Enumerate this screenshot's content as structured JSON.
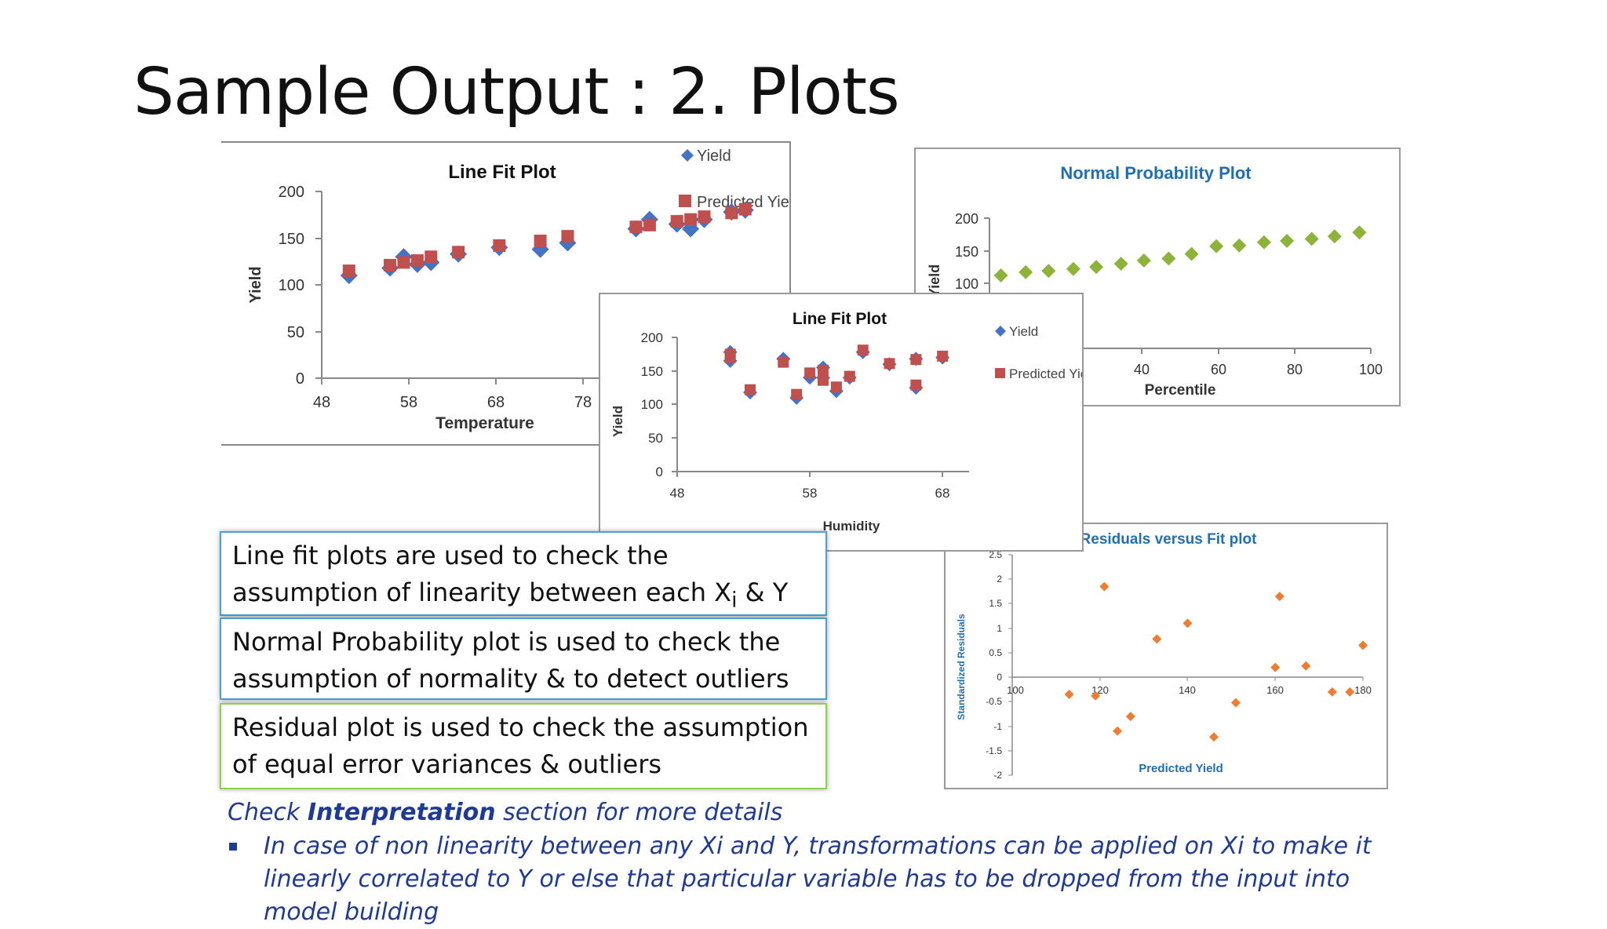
{
  "slide": {
    "title": "Sample Output : 2. Plots",
    "notes": {
      "line_fit": {
        "before_sub": "Line fit plots are used to check the assumption of linearity between each X",
        "sub": "i",
        "after_sub": " & Y"
      },
      "normal": "Normal Probability plot is used to check the assumption of normality & to detect outliers",
      "residual": "Residual plot is used to check the assumption of equal error variances & outliers"
    },
    "footer": {
      "prefix": "Check ",
      "bold": "Interpretation",
      "suffix": " section for more details"
    },
    "bullet": "In case of non linearity between any Xi and Y, transformations can be applied on Xi to make it linearly correlated  to Y or else that particular variable has to be dropped from the input into model building",
    "colors": {
      "yield": "#4472c4",
      "predicted": "#c0504d",
      "normal_points": "#8cb33a",
      "residual_points": "#ed7d31",
      "title_blue": "#1f6fb2"
    }
  },
  "chart_data": [
    {
      "id": "linefit-temp",
      "type": "scatter",
      "title": "Line Fit  Plot",
      "xlabel": "Temperature",
      "ylabel": "Yield",
      "xlim": [
        48,
        82
      ],
      "xticks": [
        48,
        58,
        68,
        78
      ],
      "ylim": [
        0,
        200
      ],
      "yticks": [
        0,
        50,
        100,
        150,
        200
      ],
      "legend": "top-right",
      "series": [
        {
          "name": "Yield",
          "marker": "diamond",
          "color": "#4472c4",
          "x": [
            50,
            53,
            54,
            55,
            56,
            58,
            61,
            64,
            66,
            71,
            72,
            74,
            75,
            76,
            78,
            79
          ],
          "y": [
            110,
            118,
            130,
            122,
            124,
            133,
            140,
            138,
            145,
            160,
            170,
            165,
            160,
            170,
            178,
            180
          ]
        },
        {
          "name": "Predicted Yield",
          "marker": "square",
          "color": "#c0504d",
          "x": [
            50,
            53,
            54,
            55,
            56,
            58,
            61,
            64,
            66,
            71,
            72,
            74,
            75,
            76,
            78,
            79
          ],
          "y": [
            115,
            121,
            124,
            126,
            130,
            135,
            142,
            147,
            152,
            162,
            164,
            168,
            170,
            173,
            177,
            181
          ]
        }
      ]
    },
    {
      "id": "normal",
      "type": "scatter",
      "title": "Normal Probability Plot",
      "xlabel": "Percentile",
      "ylabel": "Yield",
      "xlim": [
        0,
        100
      ],
      "xticks": [
        40,
        60,
        80,
        100
      ],
      "ylim": [
        0,
        200
      ],
      "yticks": [
        100,
        150,
        200
      ],
      "series": [
        {
          "name": "Yield",
          "marker": "diamond",
          "color": "#8cb33a",
          "x": [
            3,
            9.5,
            15.5,
            22,
            28,
            34.5,
            40.5,
            47,
            53,
            59.5,
            65.5,
            72,
            78,
            84.5,
            90.5,
            97
          ],
          "y": [
            112,
            117,
            119,
            122,
            125,
            130,
            135,
            138,
            145,
            157,
            158,
            163,
            165,
            168,
            172,
            178
          ]
        }
      ]
    },
    {
      "id": "residuals",
      "type": "scatter",
      "title": "Residuals versus Fit plot",
      "xlabel": "Predicted Yield",
      "ylabel": "Standardized Residuals",
      "xlim": [
        100,
        180
      ],
      "xticks": [
        100,
        120,
        140,
        160,
        180
      ],
      "ylim": [
        -2,
        2.5
      ],
      "yticks": [
        -2,
        -1.5,
        -1,
        -0.5,
        0,
        0.5,
        1,
        1.5,
        2,
        2.5
      ],
      "series": [
        {
          "name": "Residuals",
          "marker": "diamond",
          "color": "#ed7d31",
          "x": [
            113,
            119,
            121,
            124,
            127,
            133,
            140,
            146,
            151,
            160,
            161,
            167,
            173,
            177,
            180
          ],
          "y": [
            -0.35,
            -0.38,
            1.85,
            -1.1,
            -0.8,
            0.78,
            1.1,
            -1.22,
            -0.52,
            0.2,
            1.65,
            0.23,
            -0.3,
            -0.3,
            0.65
          ]
        }
      ]
    },
    {
      "id": "linefit-hum",
      "type": "scatter",
      "title": "Line Fit  Plot",
      "xlabel": "Humidity",
      "ylabel": "Yield",
      "xlim": [
        48,
        70
      ],
      "xticks": [
        48,
        58,
        68
      ],
      "ylim": [
        0,
        200
      ],
      "yticks": [
        0,
        50,
        100,
        150,
        200
      ],
      "legend": "top-right",
      "series": [
        {
          "name": "Yield",
          "marker": "diamond",
          "color": "#4472c4",
          "x": [
            52,
            52,
            53.5,
            56,
            57,
            58,
            59,
            59,
            60,
            61,
            62,
            64,
            66,
            66,
            68
          ],
          "y": [
            165,
            178,
            118,
            168,
            110,
            140,
            155,
            140,
            120,
            140,
            178,
            160,
            168,
            125,
            170
          ]
        },
        {
          "name": "Predicted Yield",
          "marker": "square",
          "color": "#c0504d",
          "x": [
            52,
            52,
            53.5,
            56,
            57,
            58,
            59,
            59,
            60,
            61,
            62,
            64,
            66,
            66,
            68
          ],
          "y": [
            170,
            175,
            122,
            163,
            115,
            147,
            151,
            136,
            126,
            142,
            181,
            161,
            167,
            129,
            172
          ]
        }
      ]
    }
  ]
}
